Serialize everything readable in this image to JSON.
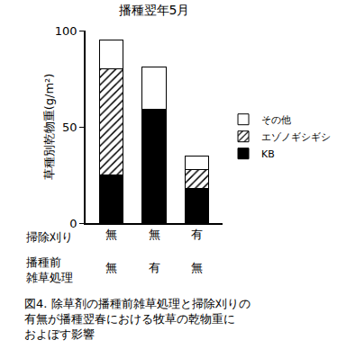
{
  "chart_data": {
    "type": "bar",
    "title": "播種翌年5月",
    "y_label": "草種別乾物重(g/m²)",
    "categories": [
      "無",
      "無",
      "有"
    ],
    "category_title": "掃除刈り",
    "categories2": [
      "無",
      "有",
      "無"
    ],
    "category2_title": "播種前\n雑草処理",
    "series": [
      {
        "name": "KB",
        "color": "#000000",
        "values": [
          25,
          59,
          18
        ]
      },
      {
        "name": "エゾノギシギシ",
        "color": "#000000",
        "marker": "hatched",
        "values": [
          55,
          0,
          10
        ]
      },
      {
        "name": "その他",
        "color": "#ffffff",
        "values": [
          15,
          22,
          7
        ]
      }
    ],
    "stacked": true,
    "ylim": [
      0,
      100
    ],
    "yticks": [
      0,
      50,
      100
    ],
    "grid": false,
    "legend": "right",
    "caption": "図4. 除草剤の播種前雑草処理と掃除刈りの\n有無が播種翌春における牧草の乾物重に\nおよぼす影響"
  }
}
